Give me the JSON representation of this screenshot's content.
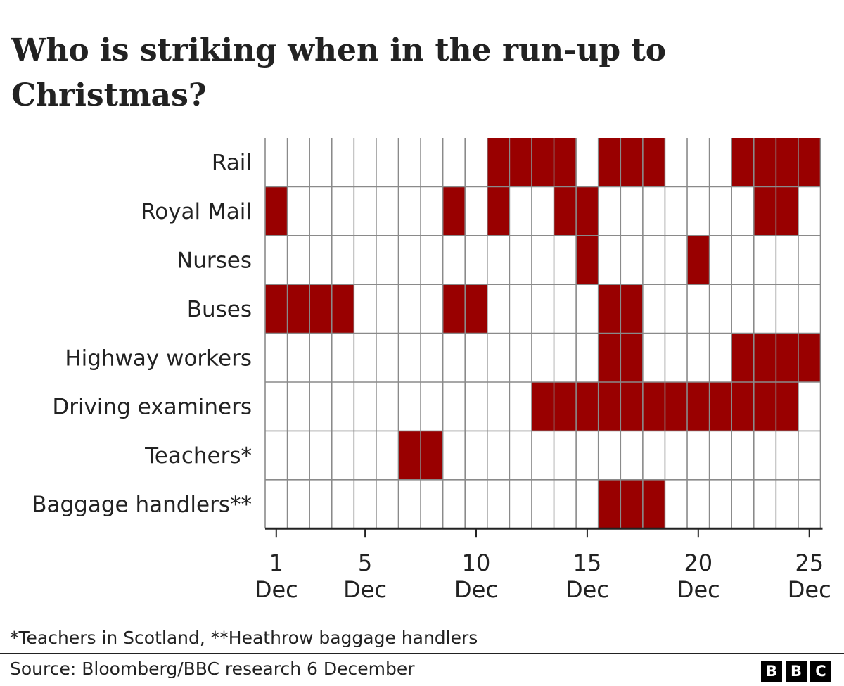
{
  "title": "Who is striking when in the run-up to Christmas?",
  "footnote": "*Teachers in Scotland, **Heathrow baggage handlers",
  "source": "Source: Bloomberg/BBC research 6 December",
  "logo": [
    "B",
    "B",
    "C"
  ],
  "colors": {
    "strike": "#990000",
    "grid": "#8a8a8a",
    "axis": "#222222",
    "text": "#222222"
  },
  "chart_data": {
    "type": "heatmap",
    "x_unit": "day of December",
    "x_range": [
      1,
      25
    ],
    "x_ticks": [
      {
        "day": 1,
        "num": "1",
        "month": "Dec"
      },
      {
        "day": 5,
        "num": "5",
        "month": "Dec"
      },
      {
        "day": 10,
        "num": "10",
        "month": "Dec"
      },
      {
        "day": 15,
        "num": "15",
        "month": "Dec"
      },
      {
        "day": 20,
        "num": "20",
        "month": "Dec"
      },
      {
        "day": 25,
        "num": "25",
        "month": "Dec"
      }
    ],
    "rows": [
      {
        "label": "Rail",
        "strike_days": [
          11,
          12,
          13,
          14,
          16,
          17,
          18,
          22,
          23,
          24,
          25
        ]
      },
      {
        "label": "Royal Mail",
        "strike_days": [
          1,
          9,
          11,
          14,
          15,
          23,
          24
        ]
      },
      {
        "label": "Nurses",
        "strike_days": [
          15,
          20
        ]
      },
      {
        "label": "Buses",
        "strike_days": [
          1,
          2,
          3,
          4,
          9,
          10,
          16,
          17
        ]
      },
      {
        "label": "Highway workers",
        "strike_days": [
          16,
          17,
          22,
          23,
          24,
          25
        ]
      },
      {
        "label": "Driving examiners",
        "strike_days": [
          13,
          14,
          15,
          16,
          17,
          18,
          19,
          20,
          21,
          22,
          23,
          24
        ]
      },
      {
        "label": "Teachers*",
        "strike_days": [
          7,
          8
        ]
      },
      {
        "label": "Baggage handlers**",
        "strike_days": [
          16,
          17,
          18
        ]
      }
    ]
  }
}
